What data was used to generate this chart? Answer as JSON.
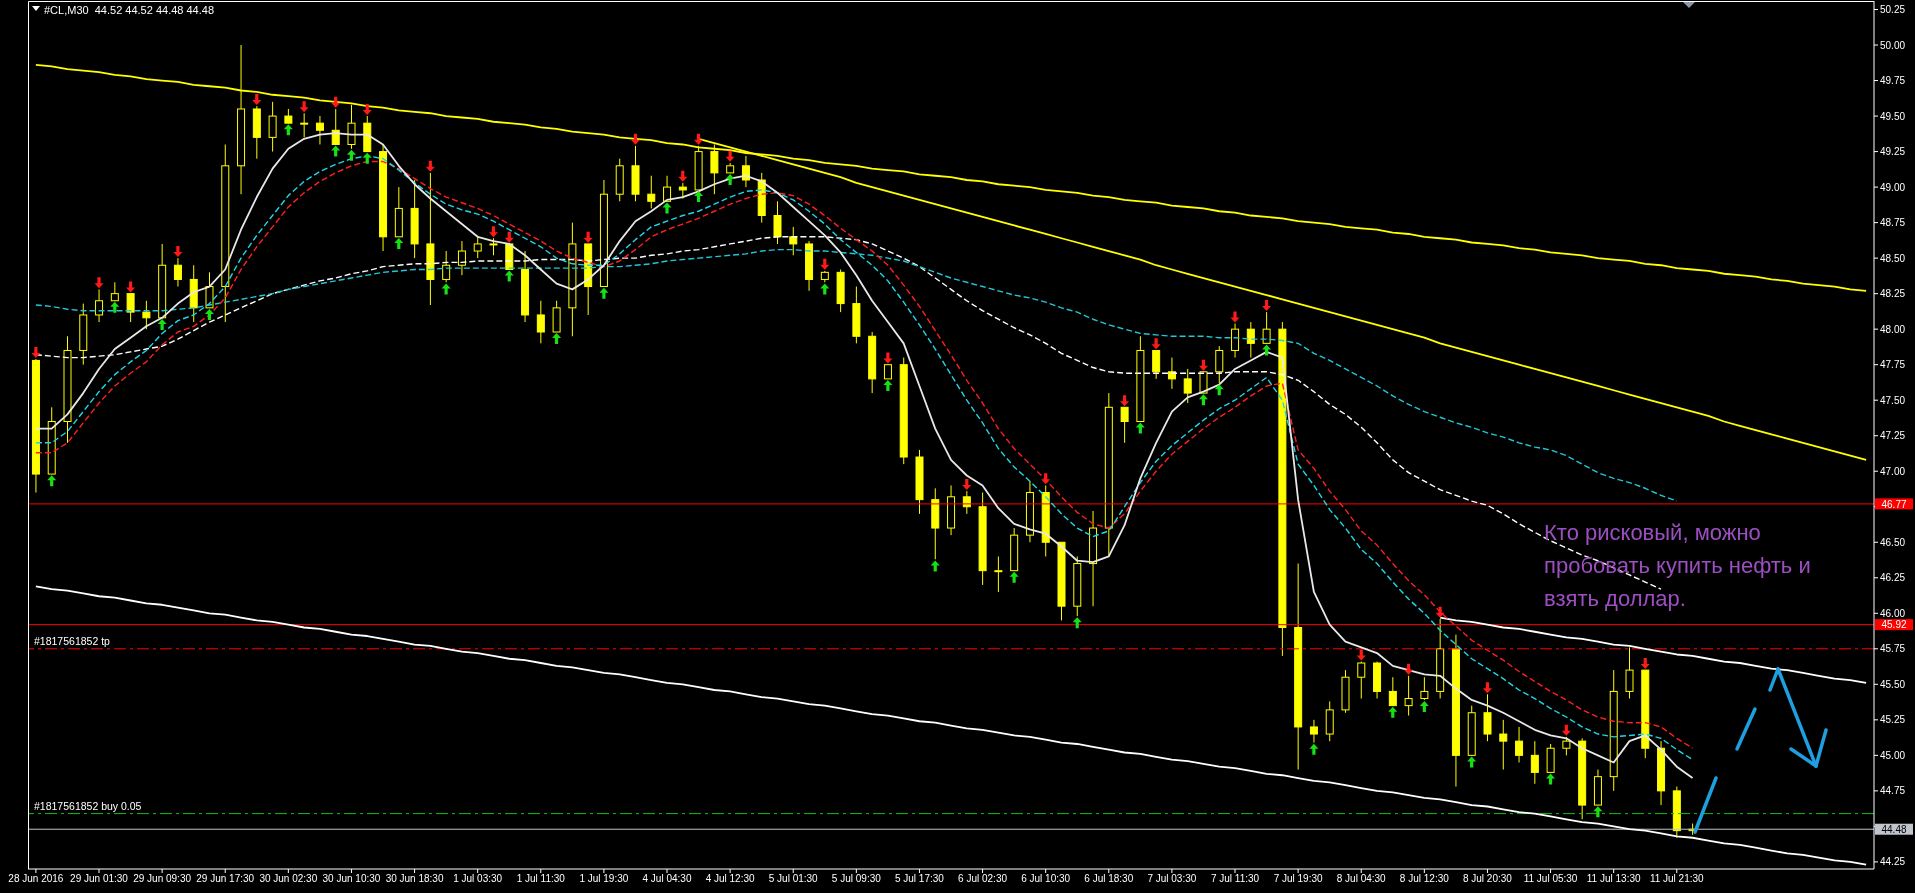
{
  "chart_data": {
    "type": "candlestick",
    "title": "#CL,M30  44.52 44.52 44.48 44.48",
    "color": "#ffff00",
    "categories": [
      "28 Jun 2016",
      null,
      null,
      null,
      "29 Jun 01:30",
      null,
      null,
      null,
      "29 Jun 09:30",
      null,
      null,
      null,
      "29 Jun 17:30",
      null,
      null,
      null,
      "30 Jun 02:30",
      null,
      null,
      null,
      "30 Jun 10:30",
      null,
      null,
      null,
      "30 Jun 18:30",
      null,
      null,
      null,
      "1 Jul 03:30",
      null,
      null,
      null,
      "1 Jul 11:30",
      null,
      null,
      null,
      "1 Jul 19:30",
      null,
      null,
      null,
      "4 Jul 04:30",
      null,
      null,
      null,
      "4 Jul 12:30",
      null,
      null,
      null,
      "5 Jul 01:30",
      null,
      null,
      null,
      "5 Jul 09:30",
      null,
      null,
      null,
      "5 Jul 17:30",
      null,
      null,
      null,
      "6 Jul 02:30",
      null,
      null,
      null,
      "6 Jul 10:30",
      null,
      null,
      null,
      "6 Jul 18:30",
      null,
      null,
      null,
      "7 Jul 03:30",
      null,
      null,
      null,
      "7 Jul 11:30",
      null,
      null,
      null,
      "7 Jul 19:30",
      null,
      null,
      null,
      "8 Jul 04:30",
      null,
      null,
      null,
      "8 Jul 12:30",
      null,
      null,
      null,
      "8 Jul 20:30",
      null,
      null,
      null,
      "11 Jul 05:30",
      null,
      null,
      null,
      "11 Jul 13:30",
      null,
      null,
      null,
      "11 Jul 21:30",
      null,
      null,
      null,
      null,
      null,
      null,
      null,
      null,
      null,
      null,
      null,
      null
    ],
    "ohlc": [
      [
        47.78,
        47.79,
        46.85,
        46.98
      ],
      [
        46.98,
        47.45,
        46.98,
        47.35
      ],
      [
        47.35,
        47.95,
        47.2,
        47.85
      ],
      [
        47.85,
        48.18,
        47.75,
        48.1
      ],
      [
        48.1,
        48.28,
        48.05,
        48.2
      ],
      [
        48.2,
        48.33,
        48.2,
        48.25
      ],
      [
        48.25,
        48.25,
        48.05,
        48.12
      ],
      [
        48.12,
        48.2,
        48.0,
        48.08
      ],
      [
        48.08,
        48.6,
        48.08,
        48.45
      ],
      [
        48.45,
        48.5,
        48.3,
        48.35
      ],
      [
        48.35,
        48.45,
        48.05,
        48.15
      ],
      [
        48.15,
        48.4,
        48.15,
        48.3
      ],
      [
        48.3,
        49.3,
        48.05,
        49.15
      ],
      [
        49.15,
        50.0,
        48.95,
        49.55
      ],
      [
        49.55,
        49.57,
        49.2,
        49.35
      ],
      [
        49.35,
        49.6,
        49.25,
        49.5
      ],
      [
        49.5,
        49.55,
        49.45,
        49.45
      ],
      [
        49.45,
        49.52,
        49.35,
        49.45
      ],
      [
        49.45,
        49.5,
        49.3,
        49.4
      ],
      [
        49.4,
        49.55,
        49.3,
        49.3
      ],
      [
        49.3,
        49.58,
        49.27,
        49.45
      ],
      [
        49.45,
        49.5,
        49.25,
        49.25
      ],
      [
        49.25,
        49.3,
        48.55,
        48.65
      ],
      [
        48.65,
        49.0,
        48.65,
        48.85
      ],
      [
        48.85,
        49.05,
        48.5,
        48.6
      ],
      [
        48.6,
        49.1,
        48.17,
        48.35
      ],
      [
        48.35,
        48.55,
        48.33,
        48.45
      ],
      [
        48.45,
        48.62,
        48.38,
        48.55
      ],
      [
        48.55,
        48.65,
        48.5,
        48.6
      ],
      [
        48.6,
        48.64,
        48.52,
        48.6
      ],
      [
        48.6,
        48.6,
        48.42,
        48.42
      ],
      [
        48.42,
        48.55,
        48.05,
        48.1
      ],
      [
        48.1,
        48.2,
        47.9,
        47.98
      ],
      [
        47.98,
        48.2,
        47.98,
        48.15
      ],
      [
        48.15,
        48.75,
        47.95,
        48.6
      ],
      [
        48.6,
        48.6,
        48.1,
        48.3
      ],
      [
        48.3,
        49.05,
        48.3,
        48.95
      ],
      [
        48.95,
        49.2,
        48.9,
        49.15
      ],
      [
        49.15,
        49.29,
        48.9,
        48.95
      ],
      [
        48.95,
        49.08,
        48.85,
        48.9
      ],
      [
        48.9,
        49.08,
        48.9,
        49.0
      ],
      [
        49.0,
        49.03,
        48.92,
        48.98
      ],
      [
        48.98,
        49.29,
        48.98,
        49.25
      ],
      [
        49.25,
        49.3,
        48.95,
        49.1
      ],
      [
        49.1,
        49.17,
        49.1,
        49.15
      ],
      [
        49.15,
        49.22,
        49.0,
        49.05
      ],
      [
        49.05,
        49.1,
        48.75,
        48.8
      ],
      [
        48.8,
        48.9,
        48.6,
        48.65
      ],
      [
        48.65,
        48.72,
        48.52,
        48.6
      ],
      [
        48.6,
        48.62,
        48.27,
        48.35
      ],
      [
        48.35,
        48.41,
        48.33,
        48.4
      ],
      [
        48.4,
        48.42,
        48.12,
        48.18
      ],
      [
        48.18,
        48.3,
        47.9,
        47.95
      ],
      [
        47.95,
        47.98,
        47.55,
        47.65
      ],
      [
        47.65,
        47.75,
        47.65,
        47.75
      ],
      [
        47.75,
        47.8,
        47.05,
        47.1
      ],
      [
        47.1,
        47.15,
        46.7,
        46.8
      ],
      [
        46.8,
        46.88,
        46.38,
        46.6
      ],
      [
        46.6,
        46.9,
        46.55,
        46.82
      ],
      [
        46.82,
        46.86,
        46.7,
        46.75
      ],
      [
        46.75,
        46.85,
        46.2,
        46.3
      ],
      [
        46.3,
        46.4,
        46.15,
        46.3
      ],
      [
        46.3,
        46.6,
        46.3,
        46.55
      ],
      [
        46.55,
        46.93,
        46.5,
        46.85
      ],
      [
        46.85,
        46.9,
        46.4,
        46.5
      ],
      [
        46.5,
        46.5,
        45.95,
        46.05
      ],
      [
        46.05,
        46.4,
        45.98,
        46.35
      ],
      [
        46.35,
        46.72,
        46.05,
        46.6
      ],
      [
        46.6,
        47.55,
        46.4,
        47.45
      ],
      [
        47.45,
        47.45,
        47.2,
        47.35
      ],
      [
        47.35,
        47.95,
        47.35,
        47.85
      ],
      [
        47.85,
        47.85,
        47.65,
        47.7
      ],
      [
        47.7,
        47.8,
        47.58,
        47.65
      ],
      [
        47.65,
        47.72,
        47.48,
        47.55
      ],
      [
        47.55,
        47.7,
        47.55,
        47.7
      ],
      [
        47.7,
        47.88,
        47.62,
        47.85
      ],
      [
        47.85,
        48.04,
        47.8,
        48.0
      ],
      [
        48.0,
        48.05,
        47.8,
        47.9
      ],
      [
        47.9,
        48.12,
        47.9,
        48.0
      ],
      [
        48.0,
        48.05,
        45.7,
        45.9
      ],
      [
        45.9,
        46.35,
        44.9,
        45.2
      ],
      [
        45.2,
        45.25,
        45.09,
        45.15
      ],
      [
        45.15,
        45.38,
        45.1,
        45.32
      ],
      [
        45.32,
        45.6,
        45.3,
        45.55
      ],
      [
        45.55,
        45.66,
        45.4,
        45.65
      ],
      [
        45.65,
        45.66,
        45.4,
        45.45
      ],
      [
        45.45,
        45.55,
        45.35,
        45.35
      ],
      [
        45.35,
        45.56,
        45.28,
        45.4
      ],
      [
        45.4,
        45.55,
        45.39,
        45.45
      ],
      [
        45.45,
        45.96,
        45.4,
        45.75
      ],
      [
        45.75,
        45.85,
        44.78,
        45.0
      ],
      [
        45.0,
        45.35,
        45.0,
        45.3
      ],
      [
        45.3,
        45.43,
        45.1,
        45.15
      ],
      [
        45.15,
        45.25,
        44.9,
        45.1
      ],
      [
        45.1,
        45.2,
        44.95,
        45.0
      ],
      [
        45.0,
        45.1,
        44.8,
        44.88
      ],
      [
        44.88,
        45.08,
        44.88,
        45.05
      ],
      [
        45.05,
        45.13,
        45.0,
        45.1
      ],
      [
        45.1,
        45.12,
        44.55,
        44.65
      ],
      [
        44.65,
        44.9,
        44.65,
        44.85
      ],
      [
        44.85,
        45.6,
        44.75,
        45.45
      ],
      [
        45.45,
        45.76,
        45.4,
        45.6
      ],
      [
        45.6,
        45.6,
        44.98,
        45.05
      ],
      [
        45.05,
        45.1,
        44.65,
        44.75
      ],
      [
        44.75,
        44.78,
        44.42,
        44.47
      ],
      [
        44.47,
        44.52,
        44.44,
        44.48
      ],
      null,
      null,
      null,
      null,
      null,
      null,
      null,
      null,
      null,
      null,
      null
    ],
    "ylim": [
      44.2,
      50.31
    ],
    "yticks": [
      44.25,
      {
        "value": 44.5,
        "label": null
      },
      44.75,
      {
        "value": 45,
        "label": "45.00"
      },
      45.25,
      {
        "value": 45.5,
        "label": "45.50"
      },
      45.75,
      {
        "value": 46,
        "label": "46.00"
      },
      46.25,
      {
        "value": 46.5,
        "label": "46.50"
      },
      {
        "value": 46.75,
        "label": null
      },
      {
        "value": 47,
        "label": "47.00"
      },
      47.25,
      {
        "value": 47.5,
        "label": "47.50"
      },
      47.75,
      {
        "value": 48,
        "label": "48.00"
      },
      48.25,
      {
        "value": 48.5,
        "label": "48.50"
      },
      48.75,
      {
        "value": 49,
        "label": "49.00"
      },
      49.25,
      {
        "value": 49.5,
        "label": "49.50"
      },
      49.75,
      {
        "value": 50,
        "label": "50.00"
      },
      50.25
    ],
    "series": [
      {
        "type": "line",
        "color": "#ffff00",
        "values": [
          49.86,
          49.85,
          49.83,
          49.82,
          49.81,
          49.79,
          49.78,
          49.76,
          49.75,
          49.74,
          49.72,
          49.71,
          49.7,
          49.68,
          49.67,
          49.65,
          49.64,
          49.63,
          49.61,
          49.6,
          49.59,
          49.57,
          49.56,
          49.54,
          49.53,
          49.52,
          49.5,
          49.49,
          49.48,
          49.46,
          49.45,
          49.44,
          49.42,
          49.41,
          49.39,
          49.38,
          49.37,
          49.35,
          49.34,
          49.33,
          49.31,
          49.3,
          49.28,
          49.27,
          49.26,
          49.24,
          49.23,
          49.22,
          49.2,
          49.19,
          49.17,
          49.16,
          49.15,
          49.13,
          49.12,
          49.11,
          49.09,
          49.08,
          49.07,
          49.05,
          49.04,
          49.02,
          49.01,
          49.0,
          48.98,
          48.97,
          48.96,
          48.94,
          48.93,
          48.91,
          48.9,
          48.89,
          48.87,
          48.86,
          48.85,
          48.83,
          48.82,
          48.8,
          48.79,
          48.78,
          48.76,
          48.75,
          48.74,
          48.72,
          48.71,
          48.7,
          48.68,
          48.67,
          48.65,
          48.64,
          48.63,
          48.61,
          48.6,
          48.59,
          48.57,
          48.56,
          48.54,
          48.53,
          48.52,
          48.5,
          48.49,
          48.48,
          48.46,
          48.45,
          48.43,
          48.42,
          48.41,
          48.39,
          48.38,
          48.37,
          48.35,
          48.34,
          48.32,
          48.31,
          48.3,
          48.28,
          48.27
        ]
      },
      {
        "type": "line",
        "color": "#ffff00",
        "values": [
          null,
          null,
          null,
          null,
          null,
          null,
          null,
          null,
          null,
          null,
          null,
          null,
          null,
          null,
          null,
          null,
          null,
          null,
          null,
          null,
          null,
          null,
          null,
          null,
          null,
          null,
          null,
          null,
          null,
          null,
          null,
          null,
          null,
          null,
          null,
          null,
          null,
          null,
          null,
          null,
          null,
          null,
          49.34,
          49.31,
          49.28,
          49.25,
          49.22,
          49.19,
          49.16,
          49.13,
          49.1,
          49.07,
          49.03,
          49.0,
          48.97,
          48.94,
          48.91,
          48.88,
          48.85,
          48.82,
          48.79,
          48.76,
          48.73,
          48.7,
          48.67,
          48.64,
          48.61,
          48.58,
          48.55,
          48.52,
          48.49,
          48.45,
          48.42,
          48.39,
          48.36,
          48.33,
          48.3,
          48.27,
          48.24,
          48.21,
          48.18,
          48.15,
          48.12,
          48.09,
          48.06,
          48.03,
          48.0,
          47.97,
          47.94,
          47.9,
          47.87,
          47.84,
          47.81,
          47.78,
          47.75,
          47.72,
          47.69,
          47.66,
          47.63,
          47.6,
          47.57,
          47.54,
          47.51,
          47.48,
          47.45,
          47.42,
          47.39,
          47.35,
          47.32,
          47.29,
          47.26,
          47.23,
          47.2,
          47.17,
          47.14,
          47.11,
          47.08
        ]
      },
      {
        "type": "line",
        "color": "#ffffff",
        "values": [
          46.19,
          46.17,
          46.16,
          46.14,
          46.12,
          46.11,
          46.09,
          46.07,
          46.06,
          46.04,
          46.02,
          46.0,
          45.99,
          45.97,
          45.95,
          45.94,
          45.92,
          45.9,
          45.89,
          45.87,
          45.85,
          45.84,
          45.82,
          45.8,
          45.78,
          45.77,
          45.75,
          45.73,
          45.72,
          45.7,
          45.68,
          45.67,
          45.65,
          45.63,
          45.62,
          45.6,
          45.58,
          45.57,
          45.55,
          45.53,
          45.51,
          45.5,
          45.48,
          45.46,
          45.45,
          45.43,
          45.41,
          45.4,
          45.38,
          45.36,
          45.35,
          45.33,
          45.31,
          45.29,
          45.28,
          45.26,
          45.24,
          45.23,
          45.21,
          45.19,
          45.18,
          45.16,
          45.14,
          45.13,
          45.11,
          45.09,
          45.08,
          45.06,
          45.04,
          45.02,
          45.01,
          44.99,
          44.97,
          44.96,
          44.94,
          44.92,
          44.91,
          44.89,
          44.87,
          44.86,
          44.84,
          44.82,
          44.81,
          44.79,
          44.77,
          44.75,
          44.74,
          44.72,
          44.7,
          44.69,
          44.67,
          44.65,
          44.64,
          44.62,
          44.6,
          44.59,
          44.57,
          44.55,
          44.53,
          44.52,
          44.5,
          44.48,
          44.47,
          44.45,
          44.43,
          44.42,
          44.4,
          44.38,
          44.37,
          44.35,
          44.33,
          44.31,
          44.3,
          44.28,
          44.26,
          44.25,
          44.23
        ]
      },
      {
        "type": "line",
        "color": "#ffffff",
        "values": [
          null,
          null,
          null,
          null,
          null,
          null,
          null,
          null,
          null,
          null,
          null,
          null,
          null,
          null,
          null,
          null,
          null,
          null,
          null,
          null,
          null,
          null,
          null,
          null,
          null,
          null,
          null,
          null,
          null,
          null,
          null,
          null,
          null,
          null,
          null,
          null,
          null,
          null,
          null,
          null,
          null,
          null,
          null,
          null,
          null,
          null,
          null,
          null,
          null,
          null,
          null,
          null,
          null,
          null,
          null,
          null,
          null,
          null,
          null,
          null,
          null,
          null,
          null,
          null,
          null,
          null,
          null,
          null,
          null,
          null,
          null,
          null,
          null,
          null,
          null,
          null,
          null,
          null,
          null,
          null,
          null,
          null,
          null,
          null,
          null,
          null,
          null,
          null,
          null,
          45.97,
          45.95,
          45.94,
          45.92,
          45.9,
          45.89,
          45.87,
          45.85,
          45.83,
          45.82,
          45.8,
          45.78,
          45.77,
          45.75,
          45.73,
          45.71,
          45.7,
          45.68,
          45.66,
          45.65,
          45.63,
          45.61,
          45.6,
          45.58,
          45.56,
          45.54,
          45.53,
          45.51
        ]
      },
      {
        "type": "line",
        "color": "#ffffff",
        "line_style": "dashed",
        "values": [
          47.82,
          47.81,
          47.8,
          47.8,
          47.81,
          47.82,
          47.84,
          47.86,
          47.88,
          47.93,
          47.99,
          48.05,
          48.1,
          48.15,
          48.2,
          48.25,
          48.28,
          48.31,
          48.34,
          48.36,
          48.39,
          48.41,
          48.44,
          48.45,
          48.46,
          48.46,
          48.47,
          48.47,
          48.48,
          48.48,
          48.48,
          48.48,
          48.49,
          48.49,
          48.49,
          48.48,
          48.49,
          48.5,
          48.5,
          48.52,
          48.53,
          48.55,
          48.56,
          48.58,
          48.6,
          48.62,
          48.64,
          48.65,
          48.65,
          48.65,
          48.65,
          48.64,
          48.63,
          48.6,
          48.55,
          48.5,
          48.44,
          48.36,
          48.28,
          48.2,
          48.13,
          48.07,
          48.01,
          47.96,
          47.9,
          47.83,
          47.78,
          47.73,
          47.7,
          47.69,
          47.69,
          47.69,
          47.69,
          47.69,
          47.69,
          47.69,
          47.7,
          47.7,
          47.7,
          47.68,
          47.64,
          47.56,
          47.47,
          47.4,
          47.31,
          47.2,
          47.08,
          46.99,
          46.93,
          46.87,
          46.83,
          46.79,
          46.76,
          46.7,
          46.63,
          46.57,
          46.51,
          46.46,
          46.41,
          46.37,
          46.32,
          46.27,
          46.22,
          46.17,
          null,
          null,
          null,
          null,
          null,
          null,
          null,
          null,
          null,
          null,
          null,
          null,
          null
        ]
      },
      {
        "type": "line",
        "color": "#20c8d8",
        "line_style": "dashed",
        "values": [
          48.17,
          48.16,
          48.14,
          48.13,
          48.13,
          48.13,
          48.13,
          48.13,
          48.13,
          48.14,
          48.15,
          48.17,
          48.19,
          48.21,
          48.23,
          48.25,
          48.28,
          48.3,
          48.32,
          48.34,
          48.36,
          48.38,
          48.4,
          48.41,
          48.42,
          48.42,
          48.43,
          48.43,
          48.43,
          48.43,
          48.43,
          48.43,
          48.43,
          48.43,
          48.43,
          48.43,
          48.44,
          48.44,
          48.45,
          48.46,
          48.48,
          48.49,
          48.5,
          48.51,
          48.52,
          48.53,
          48.55,
          48.56,
          48.56,
          48.55,
          48.55,
          48.54,
          48.53,
          48.52,
          48.5,
          48.48,
          48.44,
          48.4,
          48.36,
          48.33,
          48.3,
          48.27,
          48.24,
          48.22,
          48.19,
          48.15,
          48.12,
          48.07,
          48.03,
          48.0,
          47.97,
          47.96,
          47.95,
          47.95,
          47.95,
          47.94,
          47.94,
          47.93,
          47.93,
          47.92,
          47.9,
          47.83,
          47.78,
          47.72,
          47.66,
          47.6,
          47.53,
          47.47,
          47.42,
          47.38,
          47.34,
          47.31,
          47.27,
          47.24,
          47.2,
          47.17,
          47.15,
          47.11,
          47.05,
          46.99,
          46.95,
          46.92,
          46.88,
          46.83,
          46.79,
          null,
          null,
          null,
          null,
          null,
          null,
          null,
          null,
          null,
          null,
          null,
          null
        ]
      },
      {
        "type": "line",
        "color": "#ff2020",
        "line_style": "dashed",
        "values": [
          47.13,
          47.13,
          47.2,
          47.34,
          47.48,
          47.6,
          47.69,
          47.77,
          47.89,
          47.98,
          48.02,
          48.1,
          48.22,
          48.42,
          48.58,
          48.72,
          48.86,
          48.96,
          49.04,
          49.1,
          49.15,
          49.18,
          49.18,
          49.13,
          49.06,
          48.99,
          48.93,
          48.89,
          48.85,
          48.8,
          48.74,
          48.68,
          48.62,
          48.55,
          48.5,
          48.47,
          48.44,
          48.48,
          48.56,
          48.65,
          48.7,
          48.74,
          48.78,
          48.83,
          48.88,
          48.92,
          48.95,
          48.96,
          48.94,
          48.88,
          48.8,
          48.71,
          48.63,
          48.55,
          48.45,
          48.31,
          48.16,
          47.99,
          47.82,
          47.64,
          47.48,
          47.3,
          47.16,
          47.05,
          46.94,
          46.82,
          46.71,
          46.63,
          46.6,
          46.7,
          46.86,
          47.0,
          47.12,
          47.21,
          47.3,
          47.38,
          47.45,
          47.53,
          47.6,
          47.62,
          47.15,
          47.02,
          46.86,
          46.73,
          46.58,
          46.48,
          46.35,
          46.23,
          46.13,
          46.01,
          45.91,
          45.81,
          45.74,
          45.67,
          45.59,
          45.52,
          45.45,
          45.39,
          45.32,
          45.27,
          45.24,
          45.23,
          45.23,
          45.2,
          45.12,
          45.05,
          null,
          null,
          null,
          null,
          null,
          null,
          null,
          null,
          null,
          null,
          null
        ]
      },
      {
        "type": "line",
        "color": "#20d8e8",
        "line_style": "dashed",
        "values": [
          47.2,
          47.2,
          47.28,
          47.42,
          47.56,
          47.68,
          47.77,
          47.85,
          47.97,
          48.06,
          48.1,
          48.18,
          48.3,
          48.5,
          48.66,
          48.8,
          48.94,
          49.04,
          49.11,
          49.16,
          49.2,
          49.22,
          49.2,
          49.12,
          49.03,
          48.95,
          48.88,
          48.84,
          48.81,
          48.76,
          48.7,
          48.64,
          48.58,
          48.5,
          48.46,
          48.45,
          48.45,
          48.53,
          48.63,
          48.72,
          48.76,
          48.8,
          48.83,
          48.88,
          48.93,
          48.97,
          48.98,
          48.96,
          48.91,
          48.83,
          48.74,
          48.63,
          48.54,
          48.45,
          48.34,
          48.19,
          48.03,
          47.86,
          47.68,
          47.5,
          47.34,
          47.16,
          47.03,
          46.93,
          46.82,
          46.7,
          46.6,
          46.54,
          46.58,
          46.75,
          46.92,
          47.07,
          47.18,
          47.27,
          47.36,
          47.44,
          47.5,
          47.58,
          47.66,
          47.5,
          47.05,
          46.9,
          46.73,
          46.6,
          46.45,
          46.35,
          46.22,
          46.1,
          46.0,
          45.88,
          45.78,
          45.68,
          45.61,
          45.54,
          45.46,
          45.4,
          45.33,
          45.27,
          45.2,
          45.15,
          45.13,
          45.14,
          45.15,
          45.12,
          45.04,
          44.97,
          null,
          null,
          null,
          null,
          null,
          null,
          null,
          null,
          null,
          null,
          null
        ]
      },
      {
        "type": "line",
        "color": "#e8e8e8",
        "values": [
          47.3,
          47.3,
          47.4,
          47.55,
          47.72,
          47.86,
          47.94,
          48.02,
          48.08,
          48.18,
          48.26,
          48.3,
          48.42,
          48.7,
          48.93,
          49.13,
          49.27,
          49.34,
          49.37,
          49.38,
          49.37,
          49.37,
          49.3,
          49.15,
          49.02,
          48.92,
          48.83,
          48.74,
          48.65,
          48.62,
          48.6,
          48.52,
          48.42,
          48.32,
          48.28,
          48.35,
          48.45,
          48.62,
          48.76,
          48.83,
          48.91,
          48.93,
          48.97,
          49.02,
          49.06,
          49.08,
          49.04,
          48.96,
          48.86,
          48.76,
          48.66,
          48.54,
          48.38,
          48.2,
          48.05,
          47.9,
          47.6,
          47.3,
          47.08,
          46.97,
          46.9,
          46.74,
          46.63,
          46.59,
          46.56,
          46.47,
          46.37,
          46.36,
          46.4,
          46.62,
          46.95,
          47.2,
          47.42,
          47.52,
          47.56,
          47.61,
          47.72,
          47.78,
          47.84,
          47.8,
          46.8,
          46.15,
          45.92,
          45.8,
          45.76,
          45.72,
          45.63,
          45.6,
          45.57,
          45.56,
          45.47,
          45.39,
          45.35,
          45.3,
          45.24,
          45.18,
          45.14,
          45.12,
          45.05,
          45.0,
          44.95,
          45.1,
          45.14,
          45.04,
          44.92,
          44.84,
          null,
          null,
          null,
          null,
          null,
          null,
          null,
          null,
          null,
          null,
          null
        ]
      },
      {
        "type": "scatter",
        "color": "#ff1a1a",
        "marker": "triangle",
        "values": [
          47.84,
          null,
          null,
          null,
          48.33,
          null,
          48.3,
          null,
          null,
          48.55,
          null,
          null,
          null,
          null,
          49.62,
          null,
          null,
          49.57,
          null,
          49.6,
          null,
          49.55,
          null,
          null,
          null,
          49.15,
          null,
          null,
          null,
          48.69,
          48.65,
          null,
          null,
          null,
          null,
          48.65,
          null,
          null,
          49.34,
          null,
          null,
          49.08,
          49.34,
          null,
          49.22,
          null,
          null,
          null,
          null,
          null,
          48.46,
          null,
          null,
          null,
          47.8,
          null,
          null,
          null,
          null,
          46.91,
          null,
          null,
          null,
          null,
          46.95,
          null,
          null,
          null,
          null,
          47.5,
          null,
          47.9,
          null,
          null,
          47.75,
          null,
          48.09,
          null,
          48.17,
          null,
          null,
          null,
          null,
          null,
          45.71,
          null,
          null,
          45.61,
          null,
          46.01,
          null,
          null,
          45.48,
          null,
          null,
          null,
          null,
          45.18,
          null,
          null,
          null,
          null,
          45.65,
          null,
          null,
          null,
          null,
          null,
          null,
          null,
          null,
          null,
          null,
          null,
          null,
          null,
          null
        ]
      },
      {
        "type": "scatter",
        "color": "#16e016",
        "marker": "triangle",
        "values": [
          null,
          46.93,
          null,
          null,
          null,
          48.15,
          null,
          null,
          48.03,
          null,
          null,
          48.1,
          null,
          null,
          null,
          null,
          49.4,
          null,
          null,
          49.25,
          49.22,
          49.2,
          null,
          48.6,
          null,
          null,
          48.28,
          null,
          null,
          null,
          48.37,
          null,
          null,
          47.93,
          null,
          null,
          48.25,
          null,
          null,
          null,
          48.85,
          null,
          48.93,
          null,
          49.05,
          null,
          null,
          null,
          null,
          null,
          48.28,
          null,
          null,
          null,
          47.6,
          null,
          null,
          46.33,
          null,
          null,
          null,
          null,
          46.25,
          null,
          null,
          null,
          45.93,
          null,
          null,
          null,
          47.3,
          null,
          null,
          null,
          47.5,
          47.57,
          null,
          null,
          47.85,
          null,
          null,
          45.04,
          null,
          null,
          null,
          null,
          45.3,
          null,
          45.34,
          null,
          null,
          44.95,
          null,
          null,
          null,
          null,
          44.83,
          null,
          null,
          44.6,
          null,
          null,
          null,
          null,
          null,
          null,
          null,
          null,
          null,
          null,
          null,
          null,
          null,
          null,
          null,
          null,
          null
        ]
      }
    ],
    "ref_lines": [
      {
        "axis": "y",
        "value": 46.77,
        "label": "46.77",
        "color": "#ff0000"
      },
      {
        "axis": "y",
        "value": 45.92,
        "label": "45.92",
        "color": "#ff0000"
      },
      {
        "axis": "y",
        "value": 45.75,
        "label": "#1817561852 tp",
        "color": "#ff0000",
        "line_style": "dashed"
      },
      {
        "axis": "y",
        "value": 44.59,
        "label": "#1817561852 buy 0.05",
        "color": "#10c010",
        "line_style": "dashed"
      },
      {
        "axis": "y",
        "value": 44.48,
        "label": "44.48",
        "color": "#c0c4cc"
      }
    ],
    "annotations": [
      "Кто рисковый, можно пробовать купить нефть и взять доллар."
    ]
  }
}
